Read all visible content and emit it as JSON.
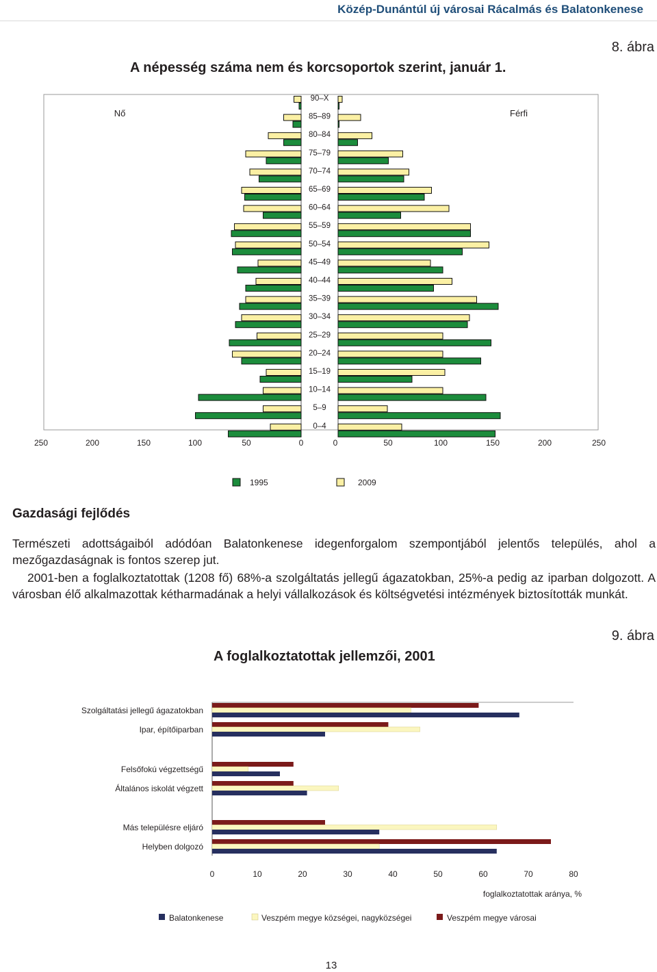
{
  "header": "Közép-Dunántúl új városai Rácalmás és Balatonkenese",
  "figure8": {
    "number": "8. ábra",
    "title": "A népesség száma nem és korcsoportok szerint, január 1.",
    "left_label": "Nő",
    "right_label": "Férfi",
    "legend": [
      {
        "label": "1995",
        "color": "#1c8c3c"
      },
      {
        "label": "2009",
        "color": "#fbf0a4"
      }
    ],
    "left_axis_ticks": [
      "250",
      "200",
      "150",
      "100",
      "50",
      "0"
    ],
    "right_axis_ticks": [
      "0",
      "50",
      "100",
      "150",
      "200",
      "250"
    ]
  },
  "chart_data": [
    {
      "type": "bar",
      "orientation": "population-pyramid",
      "categories": [
        "90–X",
        "85–89",
        "80–84",
        "75–79",
        "70–74",
        "65–69",
        "60–64",
        "55–59",
        "50–54",
        "45–49",
        "40–44",
        "35–39",
        "30–34",
        "25–29",
        "20–24",
        "15–19",
        "10–14",
        "5–9",
        "0–4"
      ],
      "series": [
        {
          "name": "1995",
          "side": "Nő",
          "values": [
            2,
            8,
            17,
            34,
            41,
            55,
            37,
            68,
            67,
            62,
            54,
            60,
            64,
            70,
            58,
            40,
            100,
            103,
            71
          ]
        },
        {
          "name": "2009",
          "side": "Nő",
          "values": [
            7,
            17,
            32,
            54,
            50,
            58,
            56,
            65,
            64,
            42,
            44,
            54,
            58,
            43,
            67,
            34,
            37,
            37,
            30
          ]
        },
        {
          "name": "1995",
          "side": "Férfi",
          "values": [
            1,
            1,
            19,
            49,
            64,
            84,
            61,
            129,
            121,
            102,
            93,
            156,
            126,
            149,
            139,
            72,
            144,
            158,
            153
          ]
        },
        {
          "name": "2009",
          "side": "Férfi",
          "values": [
            4,
            22,
            33,
            63,
            69,
            91,
            108,
            129,
            147,
            90,
            111,
            135,
            128,
            102,
            102,
            104,
            102,
            48,
            62
          ]
        }
      ],
      "xlim": [
        0,
        250
      ]
    },
    {
      "type": "bar",
      "orientation": "horizontal",
      "categories": [
        "Szolgáltatási jellegű ágazatokban",
        "Ipar, építőiparban",
        "Felsőfokú végzettségű",
        "Általános iskolát végzett",
        "Más településre eljáró",
        "Helyben dolgozó"
      ],
      "series": [
        {
          "name": "Veszpém megye városai",
          "color": "#7b1a1a",
          "values": [
            59,
            39,
            18,
            18,
            25,
            75
          ]
        },
        {
          "name": "Veszpém megye községei, nagyközségei",
          "color": "#fbf6bf",
          "values": [
            44,
            46,
            8,
            28,
            63,
            37
          ]
        },
        {
          "name": "Balatonkenese",
          "color": "#262f5f",
          "values": [
            68,
            25,
            15,
            21,
            37,
            63
          ]
        }
      ],
      "xlim": [
        0,
        80
      ],
      "xticks": [
        0,
        10,
        20,
        30,
        40,
        50,
        60,
        70,
        80
      ],
      "xlabel": "foglalkoztatottak aránya, %"
    }
  ],
  "section": {
    "title": "Gazdasági fejlődés",
    "paragraph1": "Természeti adottságaiból adódóan Balatonkenese idegenforgalom szempontjából jelentős település, ahol a mezőgazdaságnak is fontos szerep jut.",
    "paragraph2": "2001-ben a foglalkoztatottak (1208 fő) 68%-a szolgáltatás jellegű ágazatokban, 25%-a pedig az iparban dolgozott. A városban élő alkalmazottak kétharmadának a helyi vállalkozások és költségvetési intézmények biztosították munkát."
  },
  "figure9": {
    "number": "9. ábra",
    "title": "A foglalkoztatottak jellemzői, 2001"
  },
  "page_number": "13"
}
